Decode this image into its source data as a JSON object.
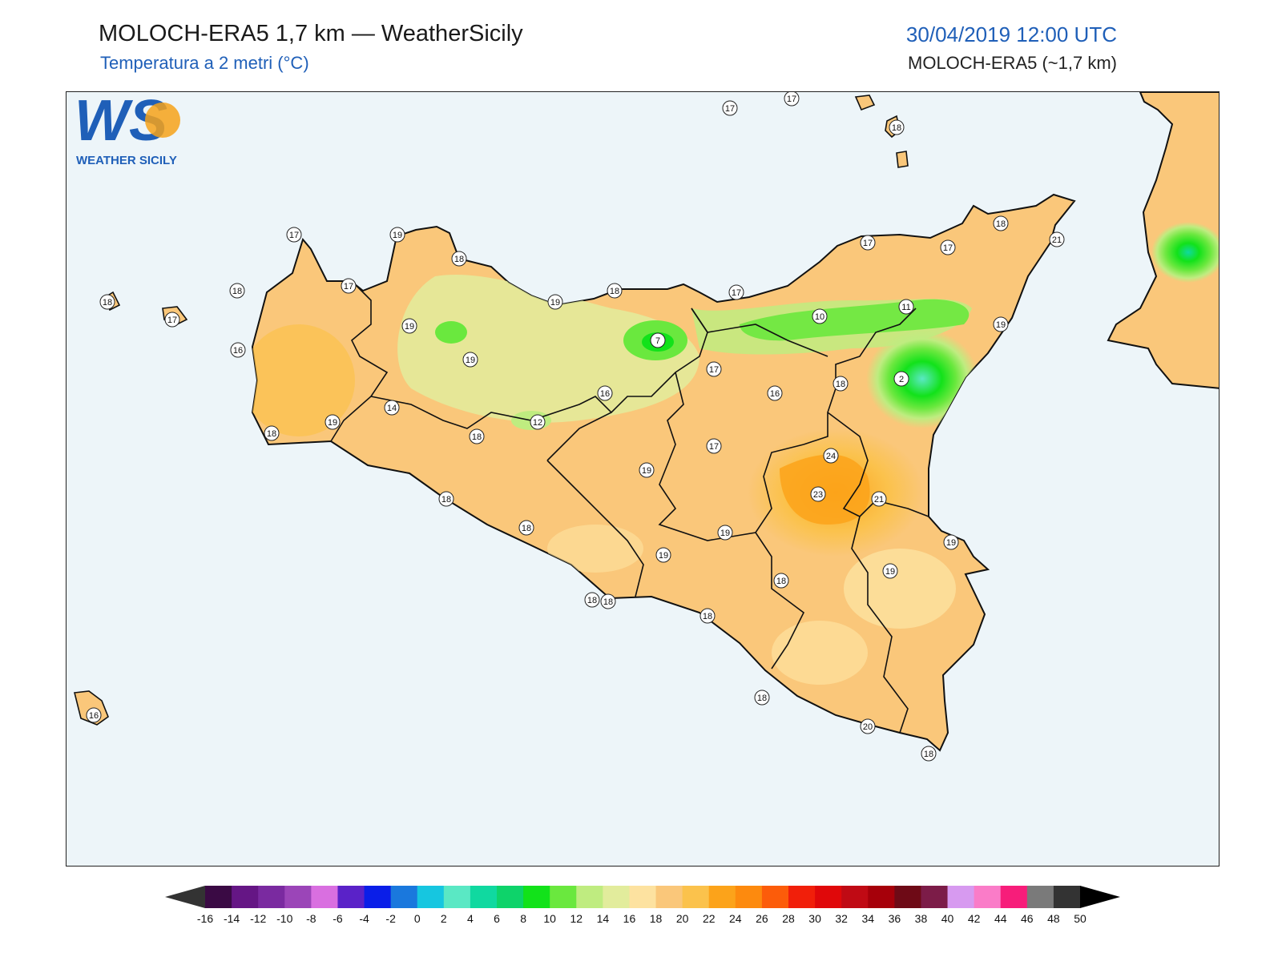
{
  "header": {
    "title": "MOLOCH-ERA5 1,7 km — WeatherSicily",
    "subtitle": "Temperatura a 2 metri (°C)",
    "datetime": "30/04/2019 12:00 UTC",
    "model": "MOLOCH-ERA5 (~1,7 km)"
  },
  "logo": {
    "letters": "WS",
    "text": "WEATHER SICILY"
  },
  "colors": {
    "sea": "#edf5f9",
    "land_base": "#fac77a",
    "accent": "#1f5fb8"
  },
  "stations": [
    "17",
    "17",
    "18",
    "18",
    "17",
    "18",
    "21",
    "19",
    "17",
    "19",
    "18",
    "17",
    "18",
    "19",
    "18",
    "17",
    "17",
    "17",
    "19",
    "10",
    "11",
    "19",
    "7",
    "16",
    "17",
    "16",
    "16",
    "2",
    "18",
    "14",
    "12",
    "18",
    "19",
    "18",
    "17",
    "24",
    "19",
    "23",
    "21",
    "18",
    "18",
    "19",
    "19",
    "19",
    "18",
    "18",
    "19",
    "18",
    "18",
    "18",
    "20",
    "18",
    "16"
  ],
  "colorbar": {
    "labels": [
      "-16",
      "-14",
      "-12",
      "-10",
      "-8",
      "-6",
      "-4",
      "-2",
      "0",
      "2",
      "4",
      "6",
      "8",
      "10",
      "12",
      "14",
      "16",
      "18",
      "20",
      "22",
      "24",
      "26",
      "28",
      "30",
      "32",
      "34",
      "36",
      "38",
      "40",
      "42",
      "44",
      "46",
      "48",
      "50"
    ],
    "colors": [
      "#3a0a44",
      "#651685",
      "#7a2aa0",
      "#9b45b8",
      "#d96fe0",
      "#5a22c8",
      "#0a1ee8",
      "#1a78dd",
      "#16c6e0",
      "#5ae8c4",
      "#10d9a0",
      "#0ed36a",
      "#12e21a",
      "#6ae83e",
      "#bfec80",
      "#e2ec9c",
      "#fde2a0",
      "#fac77a",
      "#fbc24c",
      "#fca31a",
      "#fd8a0e",
      "#fc5c0a",
      "#f11f0a",
      "#e0080a",
      "#c00a14",
      "#a6000a",
      "#6e0a16",
      "#7c1c48",
      "#d79af0",
      "#fa7cc8",
      "#f71d7a",
      "#7a7a7a",
      "#333333"
    ]
  }
}
